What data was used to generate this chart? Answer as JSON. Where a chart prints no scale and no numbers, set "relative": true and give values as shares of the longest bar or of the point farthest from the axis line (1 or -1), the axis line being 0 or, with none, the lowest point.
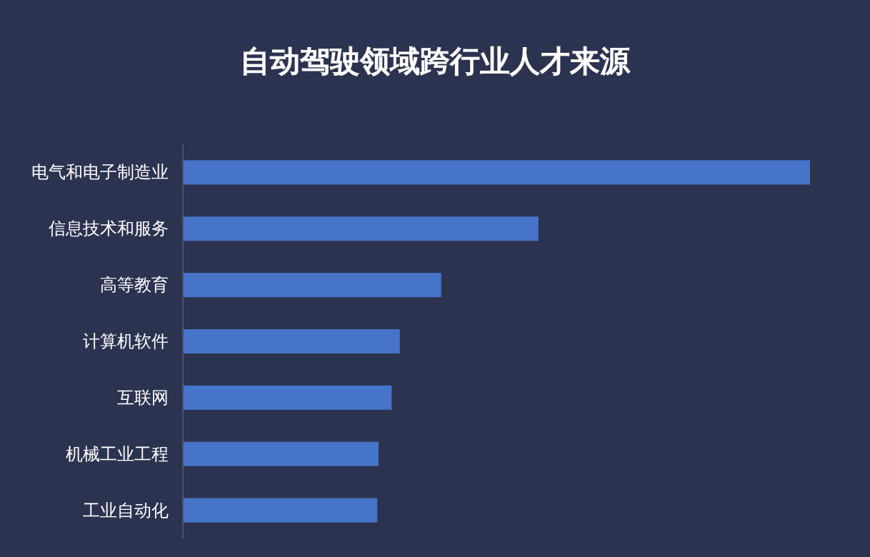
{
  "chart_data": {
    "type": "bar",
    "orientation": "horizontal",
    "relative": true,
    "title": "自动驾驶领域跨行业人才来源",
    "categories": [
      "电气和电子制造业",
      "信息技术和服务",
      "高等教育",
      "计算机软件",
      "互联网",
      "机械工业工程",
      "工业自动化"
    ],
    "values": [
      1,
      0.567,
      0.412,
      0.346,
      0.333,
      0.312,
      0.31
    ],
    "color": "#4674c8"
  }
}
